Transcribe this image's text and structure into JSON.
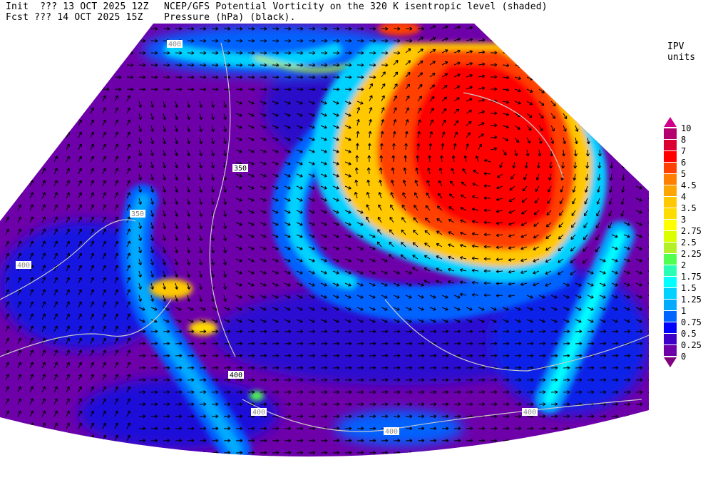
{
  "header": {
    "init_line": "Init  ??? 13 OCT 2025 12Z",
    "fcst_line": "Fcst ??? 14 OCT 2025 15Z",
    "title_line1": "NCEP/GFS Potential Vorticity on the 320 K isentropic level (shaded)",
    "title_line2": "Pressure (hPa) (black)."
  },
  "colorbar": {
    "units": "IPV units",
    "labels": [
      "10",
      "8",
      "7",
      "6",
      "5",
      "4.5",
      "4",
      "3.5",
      "3",
      "2.75",
      "2.5",
      "2.25",
      "2",
      "1.75",
      "1.5",
      "1.25",
      "1",
      "0.75",
      "0.5",
      "0.25",
      "0"
    ],
    "over_color": "#d0008c",
    "under_color": "#800080",
    "colors": [
      "#b4006e",
      "#dc0032",
      "#ff0000",
      "#ff4000",
      "#ff8000",
      "#ffa500",
      "#ffc800",
      "#ffdc00",
      "#ffff00",
      "#dcff00",
      "#b4f028",
      "#50ff50",
      "#28ffb4",
      "#00ffff",
      "#00d2ff",
      "#00aaff",
      "#0064ff",
      "#0000ff",
      "#3c00c8",
      "#6e00aa"
    ]
  },
  "map": {
    "pressure_labels": [
      "350",
      "350",
      "400",
      "400",
      "400",
      "400",
      "400",
      "400"
    ]
  }
}
